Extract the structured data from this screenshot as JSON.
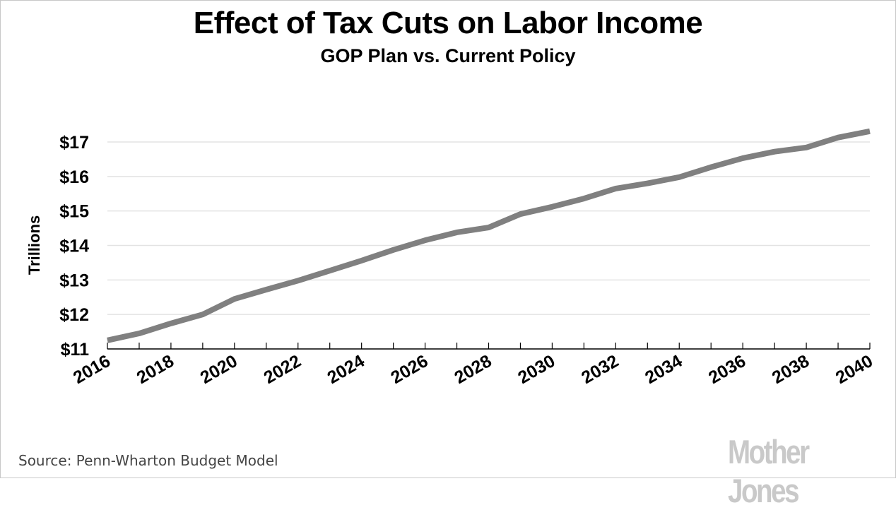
{
  "header": {
    "title": "Effect of Tax Cuts on Labor Income",
    "subtitle": "GOP Plan vs. Current Policy"
  },
  "footer": {
    "source": "Source: Penn-Wharton Budget Model",
    "logo": "Mother Jones"
  },
  "colors": {
    "line": "#808080",
    "grid": "#e3e3e3",
    "axis": "#000000",
    "logo": "#c9c9c9"
  },
  "chart_data": {
    "type": "line",
    "title": "Effect of Tax Cuts on Labor Income",
    "subtitle": "GOP Plan vs. Current Policy",
    "xlabel": "",
    "ylabel": "Trillions",
    "x": [
      2016,
      2017,
      2018,
      2019,
      2020,
      2021,
      2022,
      2023,
      2024,
      2025,
      2026,
      2027,
      2028,
      2029,
      2030,
      2031,
      2032,
      2033,
      2034,
      2035,
      2036,
      2037,
      2038,
      2039,
      2040
    ],
    "series": [
      {
        "name": "Labor Income",
        "values": [
          11.25,
          11.45,
          11.74,
          12.0,
          12.45,
          12.72,
          12.98,
          13.27,
          13.56,
          13.87,
          14.15,
          14.38,
          14.52,
          14.91,
          15.12,
          15.36,
          15.65,
          15.8,
          15.98,
          16.27,
          16.53,
          16.72,
          16.84,
          17.13,
          17.31
        ]
      }
    ],
    "xlim": [
      2016,
      2040
    ],
    "ylim": [
      11,
      17
    ],
    "x_tick_labels": [
      "2016",
      "2018",
      "2020",
      "2022",
      "2024",
      "2026",
      "2028",
      "2030",
      "2032",
      "2034",
      "2036",
      "2038",
      "2040"
    ],
    "y_tick_labels": [
      "$11",
      "$12",
      "$13",
      "$14",
      "$15",
      "$16",
      "$17"
    ],
    "y_tick_values": [
      11,
      12,
      13,
      14,
      15,
      16,
      17
    ],
    "grid": "horizontal",
    "legend": "none",
    "source": "Source: Penn-Wharton Budget Model"
  }
}
